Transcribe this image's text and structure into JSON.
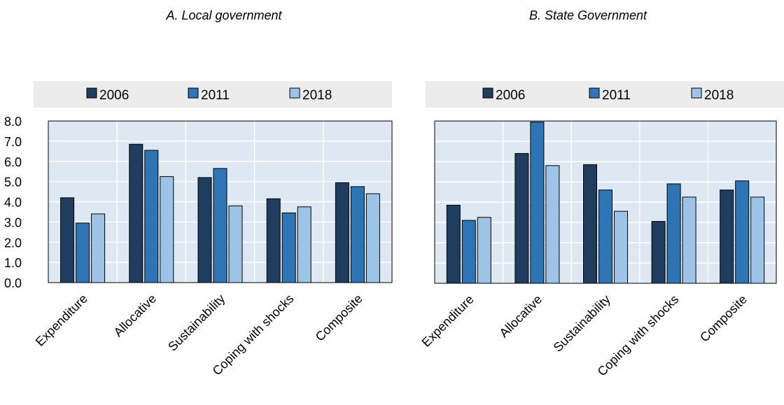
{
  "colors": {
    "s2006": "#1f3d5e",
    "s2011": "#2e75b6",
    "s2018": "#9dc3e6",
    "plot_bg": "#dde8f3",
    "legend_bg": "#ececec",
    "grid": "#ffffff",
    "bar_stroke": "#000000"
  },
  "chart_data": [
    {
      "type": "bar",
      "title": "A. Local government",
      "categories": [
        "Expenditure",
        "Allocative",
        "Sustainability",
        "Coping with shocks",
        "Composite"
      ],
      "series": [
        {
          "name": "2006",
          "values": [
            4.2,
            6.85,
            5.2,
            4.15,
            4.95
          ]
        },
        {
          "name": "2011",
          "values": [
            2.95,
            6.55,
            5.65,
            3.45,
            4.75
          ]
        },
        {
          "name": "2018",
          "values": [
            3.4,
            5.25,
            3.8,
            3.75,
            4.4
          ]
        }
      ],
      "ylim": [
        0,
        8
      ],
      "yticks": [
        "0.0",
        "1.0",
        "2.0",
        "3.0",
        "4.0",
        "5.0",
        "6.0",
        "7.0",
        "8.0"
      ],
      "xlabel": "",
      "ylabel": "",
      "grid": true,
      "legend": "top"
    },
    {
      "type": "bar",
      "title": "B. State Government",
      "categories": [
        "Expenditure",
        "Allocative",
        "Sustainability",
        "Coping with shocks",
        "Composite"
      ],
      "series": [
        {
          "name": "2006",
          "values": [
            3.85,
            6.4,
            5.85,
            3.05,
            4.6
          ]
        },
        {
          "name": "2011",
          "values": [
            3.1,
            7.95,
            4.6,
            4.9,
            5.05
          ]
        },
        {
          "name": "2018",
          "values": [
            3.25,
            5.8,
            3.55,
            4.25,
            4.25
          ]
        }
      ],
      "ylim": [
        0,
        8
      ],
      "yticks": [],
      "xlabel": "",
      "ylabel": "",
      "grid": true,
      "legend": "top"
    }
  ]
}
